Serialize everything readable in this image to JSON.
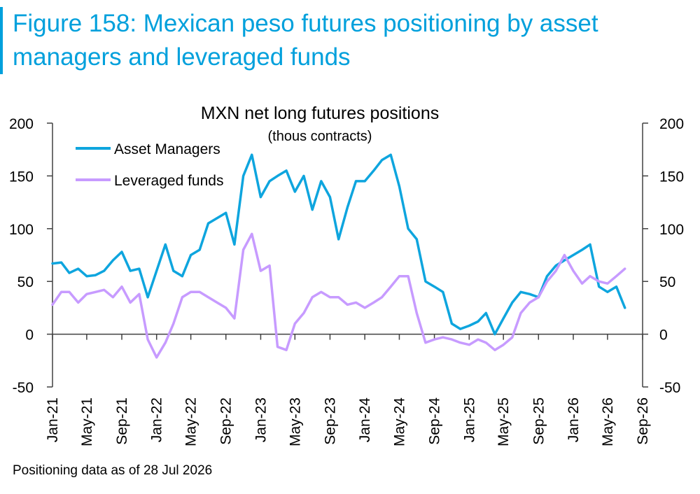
{
  "figure": {
    "title": "Figure 158: Mexican peso futures positioning by asset managers and leveraged funds",
    "footnote": "Positioning data as of 28 Jul 2026"
  },
  "chart_data": {
    "type": "line",
    "title": "MXN net long futures positions",
    "subtitle": "(thous contracts)",
    "ylim": [
      -50,
      200
    ],
    "y_ticks": [
      -50,
      0,
      50,
      100,
      150,
      200
    ],
    "y_right_ticks": [
      -50,
      0,
      50,
      100,
      150,
      200
    ],
    "x_tick_labels": [
      "Jan-21",
      "May-21",
      "Sep-21",
      "Jan-22",
      "May-22",
      "Sep-22",
      "Jan-23",
      "May-23",
      "Sep-23",
      "Jan-24",
      "May-24",
      "Sep-24",
      "Jan-25",
      "May-25",
      "Sep-25",
      "Jan-26",
      "May-26",
      "Sep-26"
    ],
    "legend_position": "top-left",
    "grid": false,
    "colors": {
      "asset_managers": "#0ea5de",
      "leveraged_funds": "#c79bff",
      "axis": "#404040",
      "title_accent": "#00a0dc"
    },
    "series": [
      {
        "name": "Asset Managers",
        "x": [
          "2021-01-01",
          "2021-02-01",
          "2021-03-01",
          "2021-04-01",
          "2021-05-01",
          "2021-06-01",
          "2021-07-01",
          "2021-08-01",
          "2021-09-01",
          "2021-10-01",
          "2021-11-01",
          "2021-12-01",
          "2022-01-01",
          "2022-02-01",
          "2022-03-01",
          "2022-04-01",
          "2022-05-01",
          "2022-06-01",
          "2022-07-01",
          "2022-08-01",
          "2022-09-01",
          "2022-10-01",
          "2022-11-01",
          "2022-12-01",
          "2023-01-01",
          "2023-02-01",
          "2023-03-01",
          "2023-04-01",
          "2023-05-01",
          "2023-06-01",
          "2023-07-01",
          "2023-08-01",
          "2023-09-01",
          "2023-10-01",
          "2023-11-01",
          "2023-12-01",
          "2024-01-01",
          "2024-02-01",
          "2024-03-01",
          "2024-04-01",
          "2024-05-01",
          "2024-06-01",
          "2024-07-01",
          "2024-08-01",
          "2024-09-01",
          "2024-10-01",
          "2024-11-01",
          "2024-12-01",
          "2025-01-01",
          "2025-02-01",
          "2025-03-01",
          "2025-04-01",
          "2025-05-01",
          "2025-06-01",
          "2025-07-01",
          "2025-08-01",
          "2025-09-01",
          "2025-10-01",
          "2025-11-01",
          "2025-12-01",
          "2026-01-01",
          "2026-02-01",
          "2026-03-01",
          "2026-04-01",
          "2026-05-01",
          "2026-06-01",
          "2026-07-01"
        ],
        "values": [
          67,
          68,
          58,
          62,
          55,
          56,
          60,
          70,
          78,
          60,
          62,
          35,
          60,
          85,
          60,
          55,
          75,
          80,
          105,
          110,
          115,
          85,
          150,
          170,
          130,
          145,
          150,
          155,
          135,
          150,
          118,
          145,
          130,
          90,
          120,
          145,
          145,
          155,
          165,
          170,
          140,
          100,
          90,
          50,
          45,
          40,
          10,
          5,
          8,
          12,
          20,
          0,
          15,
          30,
          40,
          38,
          35,
          55,
          65,
          70,
          75,
          80,
          85,
          45,
          40,
          45,
          25
        ]
      },
      {
        "name": "Leveraged funds",
        "x": [
          "2021-01-01",
          "2021-02-01",
          "2021-03-01",
          "2021-04-01",
          "2021-05-01",
          "2021-06-01",
          "2021-07-01",
          "2021-08-01",
          "2021-09-01",
          "2021-10-01",
          "2021-11-01",
          "2021-12-01",
          "2022-01-01",
          "2022-02-01",
          "2022-03-01",
          "2022-04-01",
          "2022-05-01",
          "2022-06-01",
          "2022-07-01",
          "2022-08-01",
          "2022-09-01",
          "2022-10-01",
          "2022-11-01",
          "2022-12-01",
          "2023-01-01",
          "2023-02-01",
          "2023-03-01",
          "2023-04-01",
          "2023-05-01",
          "2023-06-01",
          "2023-07-01",
          "2023-08-01",
          "2023-09-01",
          "2023-10-01",
          "2023-11-01",
          "2023-12-01",
          "2024-01-01",
          "2024-02-01",
          "2024-03-01",
          "2024-04-01",
          "2024-05-01",
          "2024-06-01",
          "2024-07-01",
          "2024-08-01",
          "2024-09-01",
          "2024-10-01",
          "2024-11-01",
          "2024-12-01",
          "2025-01-01",
          "2025-02-01",
          "2025-03-01",
          "2025-04-01",
          "2025-05-01",
          "2025-06-01",
          "2025-07-01",
          "2025-08-01",
          "2025-09-01",
          "2025-10-01",
          "2025-11-01",
          "2025-12-01",
          "2026-01-01",
          "2026-02-01",
          "2026-03-01",
          "2026-04-01",
          "2026-05-01",
          "2026-06-01",
          "2026-07-01"
        ],
        "values": [
          28,
          40,
          40,
          30,
          38,
          40,
          42,
          35,
          45,
          30,
          38,
          -5,
          -22,
          -8,
          10,
          35,
          40,
          40,
          35,
          30,
          25,
          15,
          80,
          95,
          60,
          65,
          -12,
          -15,
          10,
          20,
          35,
          40,
          35,
          35,
          28,
          30,
          25,
          30,
          35,
          45,
          55,
          55,
          20,
          -8,
          -5,
          -3,
          -5,
          -8,
          -10,
          -5,
          -8,
          -15,
          -10,
          -3,
          20,
          30,
          35,
          50,
          60,
          75,
          60,
          48,
          55,
          50,
          48,
          55,
          62
        ]
      }
    ]
  }
}
